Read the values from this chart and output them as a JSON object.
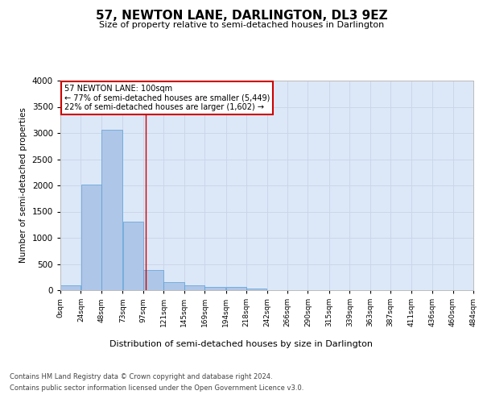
{
  "title": "57, NEWTON LANE, DARLINGTON, DL3 9EZ",
  "subtitle": "Size of property relative to semi-detached houses in Darlington",
  "xlabel": "Distribution of semi-detached houses by size in Darlington",
  "ylabel": "Number of semi-detached properties",
  "footer_line1": "Contains HM Land Registry data © Crown copyright and database right 2024.",
  "footer_line2": "Contains public sector information licensed under the Open Government Licence v3.0.",
  "annotation_title": "57 NEWTON LANE: 100sqm",
  "annotation_line1": "← 77% of semi-detached houses are smaller (5,449)",
  "annotation_line2": "22% of semi-detached houses are larger (1,602) →",
  "property_size": 100,
  "bar_left_edges": [
    0,
    24,
    48,
    73,
    97,
    121,
    145,
    169,
    194,
    218,
    242,
    266,
    290,
    315,
    339,
    363,
    387,
    411,
    436,
    460
  ],
  "bar_widths": [
    24,
    24,
    25,
    24,
    24,
    24,
    24,
    25,
    24,
    24,
    24,
    24,
    25,
    24,
    24,
    24,
    24,
    25,
    24,
    24
  ],
  "bar_heights": [
    100,
    2020,
    3060,
    1310,
    390,
    150,
    90,
    65,
    55,
    30,
    0,
    0,
    0,
    0,
    0,
    0,
    0,
    0,
    0,
    0
  ],
  "bar_color": "#aec6e8",
  "bar_edge_color": "#5a9fd4",
  "red_line_color": "#cc0000",
  "annotation_box_color": "#ffffff",
  "annotation_box_edge": "#cc0000",
  "background_color": "#ffffff",
  "grid_color": "#c8d4e8",
  "axes_bg_color": "#dce8f8",
  "xlim": [
    0,
    484
  ],
  "ylim": [
    0,
    4000
  ],
  "yticks": [
    0,
    500,
    1000,
    1500,
    2000,
    2500,
    3000,
    3500,
    4000
  ],
  "xtick_labels": [
    "0sqm",
    "24sqm",
    "48sqm",
    "73sqm",
    "97sqm",
    "121sqm",
    "145sqm",
    "169sqm",
    "194sqm",
    "218sqm",
    "242sqm",
    "266sqm",
    "290sqm",
    "315sqm",
    "339sqm",
    "363sqm",
    "387sqm",
    "411sqm",
    "436sqm",
    "460sqm",
    "484sqm"
  ],
  "xtick_positions": [
    0,
    24,
    48,
    73,
    97,
    121,
    145,
    169,
    194,
    218,
    242,
    266,
    290,
    315,
    339,
    363,
    387,
    411,
    436,
    460,
    484
  ]
}
